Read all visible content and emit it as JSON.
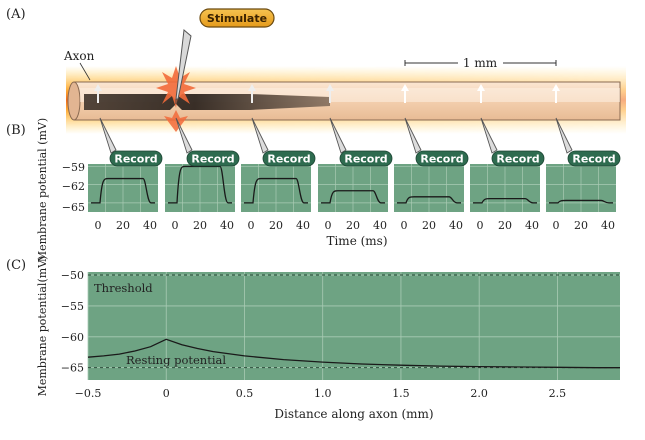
{
  "panels": {
    "a_label": "(A)",
    "b_label": "(B)",
    "c_label": "(C)"
  },
  "axon": {
    "label": "Axon",
    "stimulate_label": "Stimulate",
    "scale_label": "1 mm",
    "colors": {
      "glow": "#ffb020",
      "body": "#f6d9bf",
      "active": "#3b3129",
      "border": "#7a5a44"
    }
  },
  "recordings": {
    "record_label": "Record",
    "y_label": "Membrane potential (mV)",
    "y_ticks": [
      "−59",
      "−62",
      "−65"
    ],
    "x_ticks": [
      "0",
      "20",
      "40"
    ],
    "x_label": "Time (ms)",
    "amplitudes_mV": [
      4,
      6,
      4,
      2,
      1,
      0.7,
      0.4
    ],
    "colors": {
      "panel": "#6ea383",
      "grid": "#a9cbb4",
      "badge": "#2e6b4f",
      "trace": "#1a1a1a"
    }
  },
  "chart_data": {
    "type": "line",
    "xlabel": "Distance along axon (mm)",
    "ylabel": "Membrane potential(mV)",
    "xlim": [
      -0.5,
      2.9
    ],
    "ylim": [
      -67,
      -49.5
    ],
    "x_ticks": [
      "−0.5",
      "0",
      "0.5",
      "1.0",
      "1.5",
      "2.0",
      "2.5"
    ],
    "y_ticks": [
      "−50",
      "−55",
      "−60",
      "−65"
    ],
    "grid": true,
    "annotations": [
      "Threshold",
      "Resting potential"
    ],
    "threshold_mV": -49.5,
    "resting_mV": -65,
    "series": [
      {
        "x": [
          -0.5,
          -0.4,
          -0.3,
          -0.2,
          -0.1,
          0,
          0.1,
          0.2,
          0.3,
          0.5,
          0.75,
          1.0,
          1.25,
          1.5,
          1.75,
          2.0,
          2.25,
          2.5,
          2.75,
          2.9
        ],
        "y": [
          -63.3,
          -63.1,
          -62.8,
          -62.3,
          -61.6,
          -60.4,
          -61.3,
          -61.9,
          -62.4,
          -63.1,
          -63.7,
          -64.1,
          -64.4,
          -64.6,
          -64.75,
          -64.85,
          -64.9,
          -64.95,
          -65.0,
          -65.0
        ]
      }
    ],
    "colors": {
      "plot_bg": "#6ea383",
      "grid": "#a9cbb4",
      "line": "#1a1a1a",
      "dashed": "#2f4f3c"
    }
  }
}
